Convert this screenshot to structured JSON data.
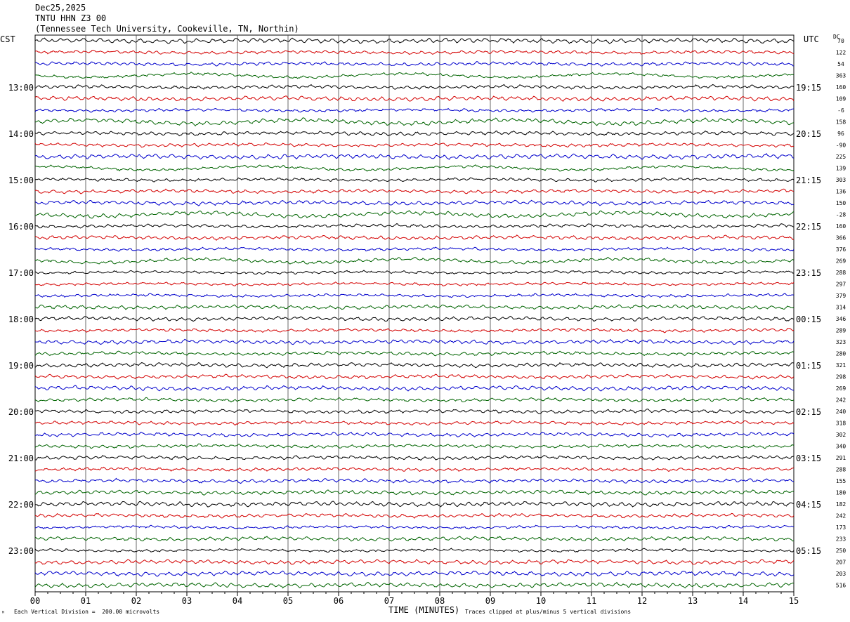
{
  "header": {
    "date": "Dec25,2025",
    "station": "TNTU HHN Z3 00",
    "location": "(Tennessee Tech University, Cookeville, TN, Northin)"
  },
  "labels": {
    "left_zone": "CST",
    "right_zone": "UTC",
    "dc_header": "DC",
    "xlabel": "TIME (MINUTES)",
    "scale_note": "Each Vertical Division =  200.00 microvolts",
    "clip_note": "Traces clipped at plus/minus 5 vertical divisions",
    "corner_mark": "ᴹ"
  },
  "chart_data": {
    "type": "line",
    "title": "TNTU HHN Z3 00",
    "xlabel": "TIME (MINUTES)",
    "ylabel": "",
    "xlim": [
      0,
      15
    ],
    "x_ticks": [
      "00",
      "01",
      "02",
      "03",
      "04",
      "05",
      "06",
      "07",
      "08",
      "09",
      "10",
      "11",
      "12",
      "13",
      "14",
      "15"
    ],
    "trace_count": 48,
    "trace_colors": [
      "#000000",
      "#d40000",
      "#0000cc",
      "#006400"
    ],
    "left_time_labels": [
      "13:00",
      "14:00",
      "15:00",
      "16:00",
      "17:00",
      "18:00",
      "19:00",
      "20:00",
      "21:00",
      "22:00",
      "23:00"
    ],
    "right_time_labels": [
      "19:15",
      "20:15",
      "21:15",
      "22:15",
      "23:15",
      "00:15",
      "01:15",
      "02:15",
      "03:15",
      "04:15",
      "05:15"
    ],
    "label_first_trace_index": 4,
    "label_every_n_traces": 4,
    "dc_offsets": [
      "70",
      "122",
      "54",
      "363",
      "160",
      "109",
      "-6",
      "158",
      "96",
      "-90",
      "225",
      "139",
      "303",
      "136",
      "150",
      "-28",
      "160",
      "366",
      "376",
      "269",
      "288",
      "297",
      "379",
      "314",
      "346",
      "289",
      "323",
      "280",
      "321",
      "298",
      "269",
      "242",
      "240",
      "318",
      "302",
      "340",
      "291",
      "288",
      "155",
      "180",
      "182",
      "242",
      "173",
      "233",
      "250",
      "207",
      "203",
      "516"
    ],
    "grid": true
  }
}
